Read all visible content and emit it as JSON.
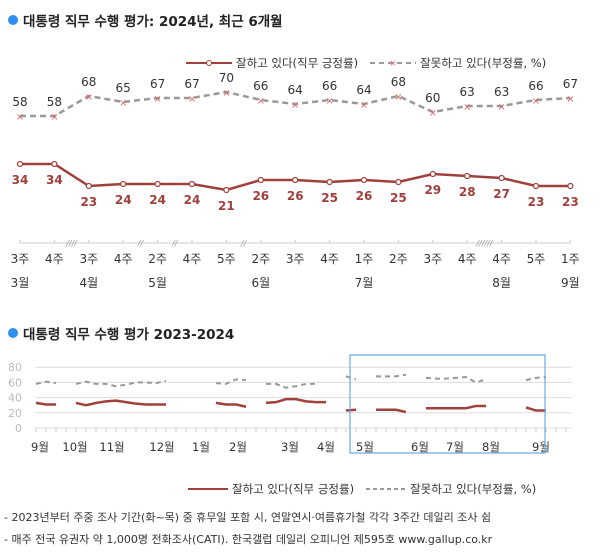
{
  "chart_data": [
    {
      "type": "line",
      "title": "대통령 직무 수행 평가: 2024년, 최근 6개월",
      "x_weeks": [
        "3주",
        "4주",
        "3주",
        "4주",
        "2주",
        "4주",
        "5주",
        "2주",
        "3주",
        "4주",
        "1주",
        "2주",
        "3주",
        "4주",
        "4주",
        "5주",
        "1주"
      ],
      "x_months": [
        "3월",
        "",
        "4월",
        "",
        "5월",
        "",
        "",
        "6월",
        "",
        "",
        "7월",
        "",
        "",
        "",
        "8월",
        "",
        "9월"
      ],
      "axis_breaks": [
        "////",
        "//",
        "//",
        "//",
        "//////"
      ],
      "series": [
        {
          "name": "잘하고 있다(직무 긍정률)",
          "color": "#a0403c",
          "values": [
            34,
            34,
            23,
            24,
            24,
            24,
            21,
            26,
            26,
            25,
            26,
            25,
            29,
            28,
            27,
            23,
            23
          ]
        },
        {
          "name": "잘못하고 있다(부정률, %)",
          "color": "#999999",
          "values": [
            58,
            58,
            68,
            65,
            67,
            67,
            70,
            66,
            64,
            66,
            64,
            68,
            60,
            63,
            63,
            66,
            67
          ]
        }
      ]
    },
    {
      "type": "line",
      "title": "대통령 직무 수행 평가 2023-2024",
      "y_ticks": [
        80,
        60,
        40,
        20,
        0
      ],
      "ylim": [
        0,
        80
      ],
      "month_labels": [
        "9월",
        "10월",
        "11월",
        "12월",
        "1월",
        "2월",
        "3월",
        "4월",
        "5월",
        "6월",
        "7월",
        "8월",
        "9월"
      ],
      "series": [
        {
          "name": "잘하고 있다(직무 긍정률)",
          "color": "#a0403c",
          "segments": [
            [
              0,
              [
                33,
                31,
                31
              ]
            ],
            [
              4,
              [
                33,
                30,
                33,
                35,
                36,
                34,
                32,
                31,
                31,
                31
              ]
            ],
            [
              18,
              [
                33,
                31,
                31,
                28
              ]
            ],
            [
              23,
              [
                33,
                34,
                38,
                38,
                35,
                34,
                34
              ]
            ],
            [
              31,
              [
                23,
                24
              ]
            ],
            [
              34,
              [
                24,
                24,
                24,
                21
              ]
            ],
            [
              39,
              [
                26,
                26,
                26,
                26,
                26,
                29,
                29
              ]
            ],
            [
              49,
              [
                27,
                23,
                23
              ]
            ]
          ]
        },
        {
          "name": "잘못하고 있다(부정률, %)",
          "color": "#999999",
          "segments": [
            [
              0,
              [
                58,
                61,
                59
              ]
            ],
            [
              4,
              [
                58,
                61,
                58,
                58,
                55,
                57,
                60,
                60,
                59,
                62
              ]
            ],
            [
              18,
              [
                59,
                58,
                64,
                63
              ]
            ],
            [
              23,
              [
                58,
                58,
                53,
                55,
                58,
                58
              ]
            ],
            [
              31,
              [
                68,
                64
              ]
            ],
            [
              34,
              [
                68,
                68,
                68,
                70
              ]
            ],
            [
              39,
              [
                66,
                65,
                65,
                66,
                67,
                60,
                64
              ]
            ],
            [
              49,
              [
                63,
                66,
                67
              ]
            ]
          ]
        }
      ]
    }
  ],
  "legend": {
    "pos": "잘하고 있다(직무 긍정률)",
    "neg": "잘못하고 있다(부정률, %)"
  },
  "notes": [
    "- 2023년부터 주중 조사 기간(화~목) 중 휴무일 포함 시, 연말연시·여름휴가철 각각 3주간 데일리 조사 쉼",
    "- 매주 전국 유권자 약 1,000명 전화조사(CATI). 한국갤럽 데일리 오피니언 제595호 www.gallup.co.kr"
  ]
}
